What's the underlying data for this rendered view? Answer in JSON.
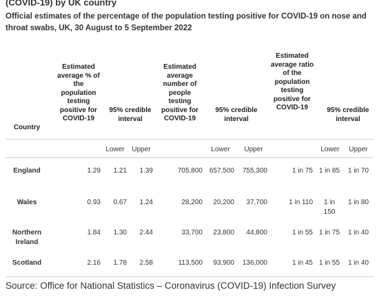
{
  "title": "(COVID-19) by UK country",
  "subtitle": "Official estimates of the percentage of the population testing positive for COVID-19 on nose and throat swabs, UK, 30 August to 5 September 2022",
  "headers": {
    "country": "Country",
    "pct": "Estimated average % of the population testing positive for COVID-19",
    "pct_ci": "95% credible interval",
    "num": "Estimated average number of people testing positive for COVID-19",
    "num_ci": "95% credible interval",
    "ratio": "Estimated average ratio of the population testing positive for COVID-19",
    "ratio_ci": "95% credible interval"
  },
  "subheaders": {
    "lower": "Lower",
    "upper": "Upper"
  },
  "rows": [
    {
      "country": "England",
      "pct": "1.29",
      "pct_lower": "1.21",
      "pct_upper": "1.39",
      "num": "705,800",
      "num_lower": "657,500",
      "num_upper": "755,300",
      "ratio": "1 in 75",
      "ratio_lower": "1 in 85",
      "ratio_upper": "1 in 70"
    },
    {
      "country": "Wales",
      "pct": "0.93",
      "pct_lower": "0.67",
      "pct_upper": "1.24",
      "num": "28,200",
      "num_lower": "20,200",
      "num_upper": "37,700",
      "ratio": "1 in 110",
      "ratio_lower": "1 in 150",
      "ratio_upper": "1 in 80"
    },
    {
      "country": "Northern Ireland",
      "pct": "1.84",
      "pct_lower": "1.30",
      "pct_upper": "2.44",
      "num": "33,700",
      "num_lower": "23,800",
      "num_upper": "44,800",
      "ratio": "1 in 55",
      "ratio_lower": "1 in 75",
      "ratio_upper": "1 in 40"
    },
    {
      "country": "Scotland",
      "pct": "2.16",
      "pct_lower": "1.78",
      "pct_upper": "2.58",
      "num": "113,500",
      "num_lower": "93,900",
      "num_upper": "136,000",
      "ratio": "1 in 45",
      "ratio_lower": "1 in 55",
      "ratio_upper": "1 in 40"
    }
  ],
  "source": "Source: Office for National Statistics – Coronavirus (COVID-19) Infection Survey",
  "colors": {
    "rule": "#cfcfcf",
    "text": "#333333"
  }
}
